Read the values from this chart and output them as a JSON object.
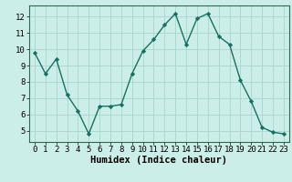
{
  "x": [
    0,
    1,
    2,
    3,
    4,
    5,
    6,
    7,
    8,
    9,
    10,
    11,
    12,
    13,
    14,
    15,
    16,
    17,
    18,
    19,
    20,
    21,
    22,
    23
  ],
  "y": [
    9.8,
    8.5,
    9.4,
    7.2,
    6.2,
    4.8,
    6.5,
    6.5,
    6.6,
    8.5,
    9.9,
    10.6,
    11.5,
    12.2,
    10.3,
    11.9,
    12.2,
    10.8,
    10.3,
    8.1,
    6.8,
    5.2,
    4.9,
    4.8
  ],
  "line_color": "#1a7060",
  "marker": "D",
  "marker_size": 2.2,
  "bg_color": "#cceee8",
  "grid_color": "#aad4ce",
  "xlabel": "Humidex (Indice chaleur)",
  "ylim": [
    4.3,
    12.7
  ],
  "yticks": [
    5,
    6,
    7,
    8,
    9,
    10,
    11,
    12
  ],
  "xlim": [
    -0.5,
    23.5
  ],
  "xticks": [
    0,
    1,
    2,
    3,
    4,
    5,
    6,
    7,
    8,
    9,
    10,
    11,
    12,
    13,
    14,
    15,
    16,
    17,
    18,
    19,
    20,
    21,
    22,
    23
  ],
  "axis_color": "#336655",
  "tick_color": "#000000",
  "xlabel_fontsize": 7.5,
  "tick_fontsize": 6.5,
  "font_family": "monospace",
  "linewidth": 1.0
}
